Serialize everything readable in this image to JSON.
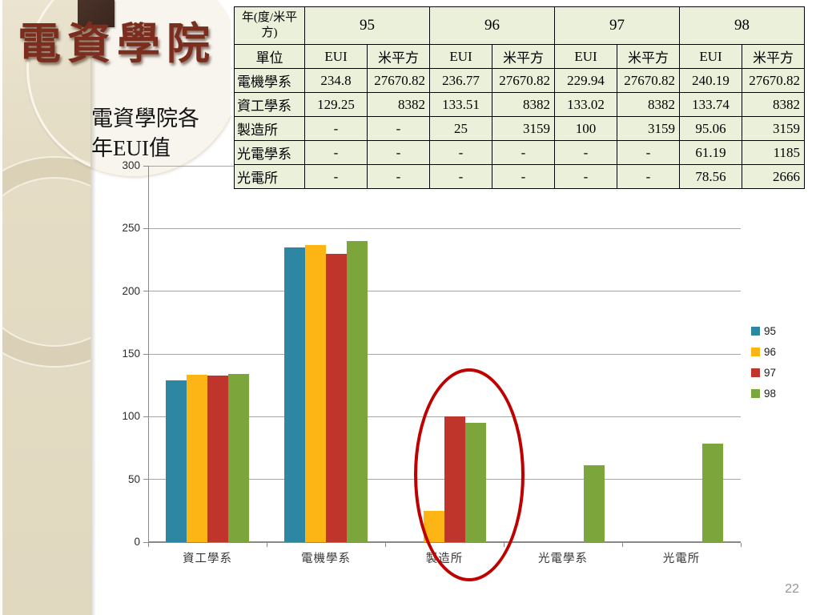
{
  "title": "電資學院",
  "subtitle": "電資學院各年EUI值",
  "page_number": "22",
  "theme": {
    "sidebar_color": "#e4dcc4",
    "title_color": "#7b2e1e",
    "table_fill": "#eaf0da",
    "annotation_color": "#bf0000"
  },
  "table": {
    "year_header": "年(度/米平方)",
    "unit_label": "單位",
    "years": [
      "95",
      "96",
      "97",
      "98"
    ],
    "sub_headers": [
      "EUI",
      "米平方"
    ],
    "rows": [
      {
        "name": "電機學系",
        "values": [
          "234.8",
          "27670.82",
          "236.77",
          "27670.82",
          "229.94",
          "27670.82",
          "240.19",
          "27670.82"
        ]
      },
      {
        "name": "資工學系",
        "values": [
          "129.25",
          "8382",
          "133.51",
          "8382",
          "133.02",
          "8382",
          "133.74",
          "8382"
        ]
      },
      {
        "name": "製造所",
        "values": [
          "-",
          "-",
          "25",
          "3159",
          "100",
          "3159",
          "95.06",
          "3159"
        ]
      },
      {
        "name": "光電學系",
        "values": [
          "-",
          "-",
          "-",
          "-",
          "-",
          "-",
          "61.19",
          "1185"
        ]
      },
      {
        "name": "光電所",
        "values": [
          "-",
          "-",
          "-",
          "-",
          "-",
          "-",
          "78.56",
          "2666"
        ]
      }
    ]
  },
  "chart_data": {
    "type": "bar",
    "title": "",
    "xlabel": "",
    "ylabel": "",
    "categories": [
      "資工學系",
      "電機學系",
      "製造所",
      "光電學系",
      "光電所"
    ],
    "series": [
      {
        "name": "95",
        "color": "#2e87a2",
        "values": [
          129.25,
          234.8,
          null,
          null,
          null
        ]
      },
      {
        "name": "96",
        "color": "#fdb515",
        "values": [
          133.51,
          236.77,
          25,
          null,
          null
        ]
      },
      {
        "name": "97",
        "color": "#c0352b",
        "values": [
          133.02,
          229.94,
          100,
          null,
          null
        ]
      },
      {
        "name": "98",
        "color": "#7ca53c",
        "values": [
          133.74,
          240.19,
          95.06,
          61.19,
          78.56
        ]
      }
    ],
    "ylim": [
      0,
      300
    ],
    "ytick_step": 50,
    "grid": true,
    "legend_position": "right",
    "annotation": "red ellipse circling the 製造所 bar group"
  }
}
